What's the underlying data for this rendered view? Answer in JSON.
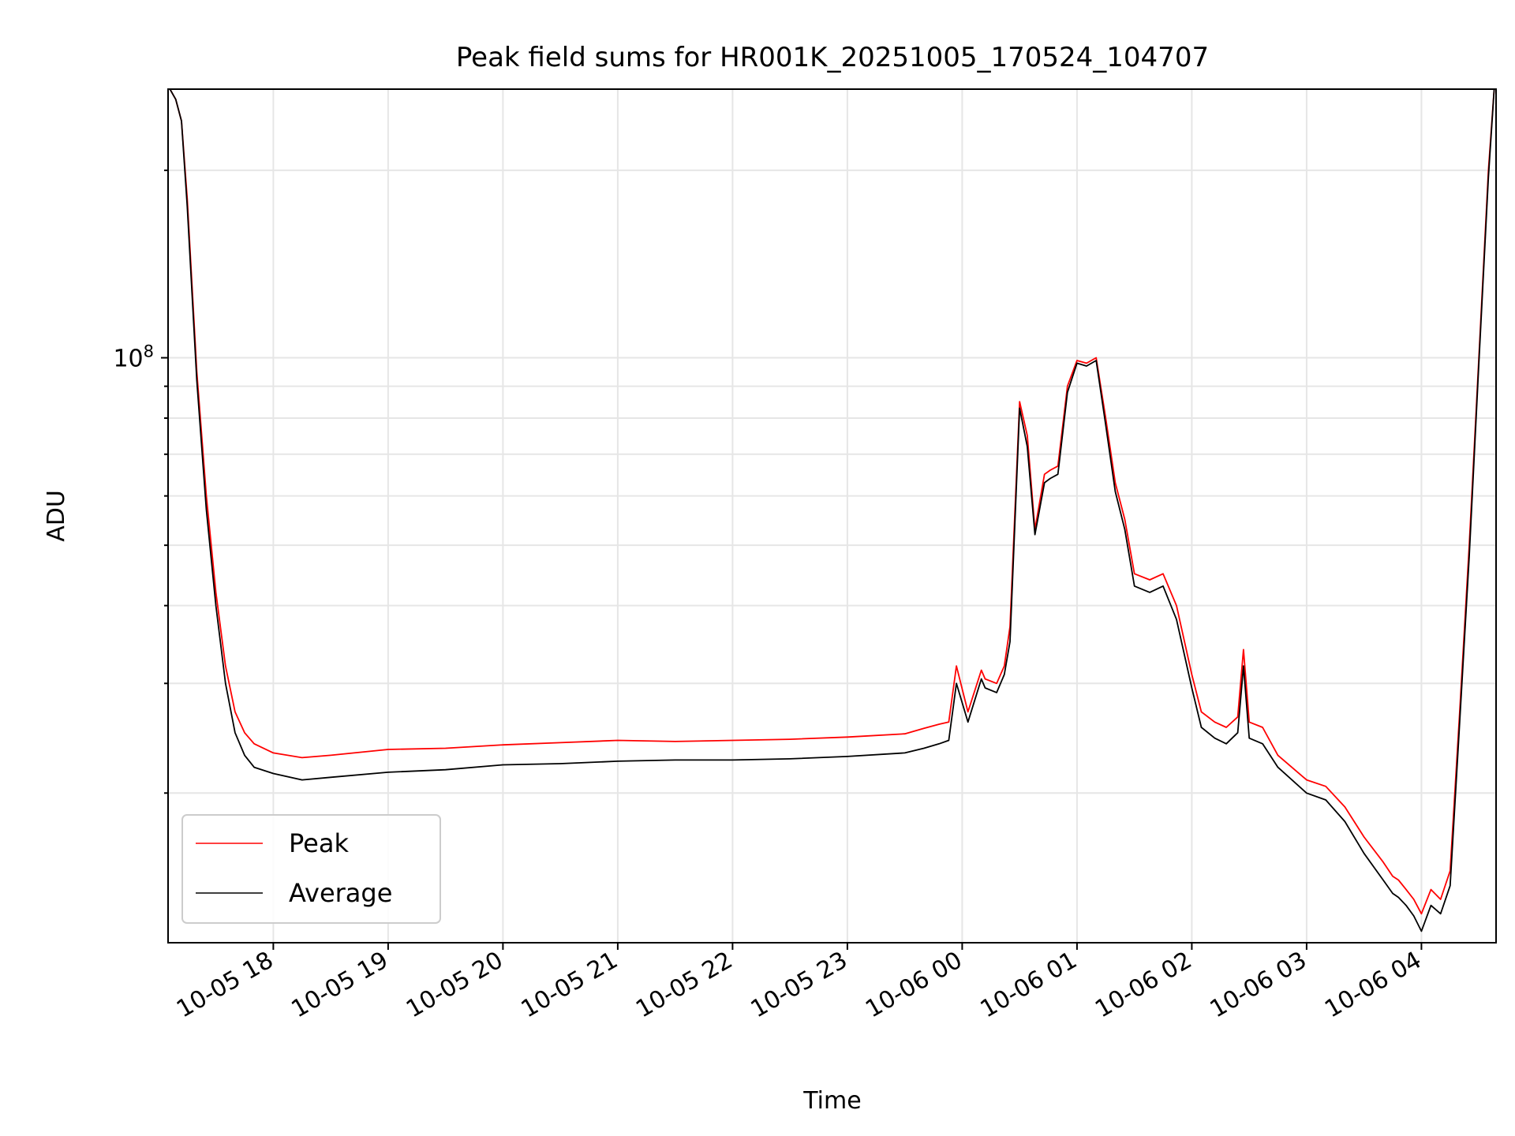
{
  "chart_data": {
    "type": "line",
    "title": "Peak field sums for HR001K_20251005_170524_104707",
    "xlabel": "Time",
    "ylabel": "ADU",
    "y_scale": "log",
    "y_tick_labels": [
      {
        "value": 100000000,
        "base": "10",
        "exp": "8"
      }
    ],
    "x_tick_labels": [
      "10-05 18",
      "10-05 19",
      "10-05 20",
      "10-05 21",
      "10-05 22",
      "10-05 23",
      "10-06 00",
      "10-06 01",
      "10-06 02",
      "10-06 03",
      "10-06 04"
    ],
    "x_ticks": [
      "2025-10-05 18:00",
      "2025-10-05 19:00",
      "2025-10-05 20:00",
      "2025-10-05 21:00",
      "2025-10-05 22:00",
      "2025-10-05 23:00",
      "2025-10-06 00:00",
      "2025-10-06 01:00",
      "2025-10-06 02:00",
      "2025-10-06 03:00",
      "2025-10-06 04:00"
    ],
    "xlim": [
      "2025-10-05 17:05",
      "2025-10-06 04:39"
    ],
    "ylim": [
      11500000,
      270000000
    ],
    "grid": true,
    "legend_position": "lower-left",
    "series": [
      {
        "name": "Peak",
        "color": "#ff0000",
        "x": [
          "2025-10-05 17:06",
          "2025-10-05 17:09",
          "2025-10-05 17:12",
          "2025-10-05 17:15",
          "2025-10-05 17:20",
          "2025-10-05 17:25",
          "2025-10-05 17:30",
          "2025-10-05 17:35",
          "2025-10-05 17:40",
          "2025-10-05 17:45",
          "2025-10-05 17:50",
          "2025-10-05 18:00",
          "2025-10-05 18:15",
          "2025-10-05 18:30",
          "2025-10-05 19:00",
          "2025-10-05 19:30",
          "2025-10-05 20:00",
          "2025-10-05 20:30",
          "2025-10-05 21:00",
          "2025-10-05 21:30",
          "2025-10-05 22:00",
          "2025-10-05 22:30",
          "2025-10-05 23:00",
          "2025-10-05 23:30",
          "2025-10-05 23:40",
          "2025-10-05 23:48",
          "2025-10-05 23:53",
          "2025-10-05 23:57",
          "2025-10-06 00:03",
          "2025-10-06 00:10",
          "2025-10-06 00:12",
          "2025-10-06 00:18",
          "2025-10-06 00:22",
          "2025-10-06 00:25",
          "2025-10-06 00:30",
          "2025-10-06 00:34",
          "2025-10-06 00:38",
          "2025-10-06 00:43",
          "2025-10-06 00:46",
          "2025-10-06 00:50",
          "2025-10-06 00:55",
          "2025-10-06 01:00",
          "2025-10-06 01:05",
          "2025-10-06 01:10",
          "2025-10-06 01:15",
          "2025-10-06 01:20",
          "2025-10-06 01:25",
          "2025-10-06 01:30",
          "2025-10-06 01:38",
          "2025-10-06 01:45",
          "2025-10-06 01:52",
          "2025-10-06 02:00",
          "2025-10-06 02:05",
          "2025-10-06 02:12",
          "2025-10-06 02:18",
          "2025-10-06 02:24",
          "2025-10-06 02:27",
          "2025-10-06 02:30",
          "2025-10-06 02:37",
          "2025-10-06 02:45",
          "2025-10-06 03:00",
          "2025-10-06 03:10",
          "2025-10-06 03:20",
          "2025-10-06 03:30",
          "2025-10-06 03:40",
          "2025-10-06 03:45",
          "2025-10-06 03:48",
          "2025-10-06 03:52",
          "2025-10-06 03:56",
          "2025-10-06 04:00",
          "2025-10-06 04:05",
          "2025-10-06 04:10",
          "2025-10-06 04:15",
          "2025-10-06 04:20",
          "2025-10-06 04:25",
          "2025-10-06 04:30",
          "2025-10-06 04:35",
          "2025-10-06 04:38"
        ],
        "y": [
          270000000,
          260000000,
          240000000,
          180000000,
          95000000,
          60000000,
          42000000,
          32000000,
          27000000,
          25000000,
          24000000,
          23200000,
          22800000,
          23000000,
          23500000,
          23600000,
          23900000,
          24100000,
          24300000,
          24200000,
          24300000,
          24400000,
          24600000,
          24900000,
          25400000,
          25800000,
          26000000,
          32000000,
          27000000,
          31500000,
          30500000,
          30000000,
          32000000,
          37000000,
          85000000,
          75000000,
          53000000,
          65000000,
          66000000,
          67000000,
          90000000,
          99000000,
          98000000,
          100000000,
          80000000,
          63000000,
          55000000,
          45000000,
          44000000,
          45000000,
          40000000,
          31000000,
          27000000,
          26000000,
          25500000,
          26500000,
          34000000,
          26000000,
          25500000,
          23000000,
          21000000,
          20500000,
          19000000,
          17000000,
          15500000,
          14700000,
          14500000,
          14000000,
          13500000,
          12800000,
          14000000,
          13500000,
          15000000,
          27000000,
          50000000,
          100000000,
          200000000,
          270000000
        ]
      },
      {
        "name": "Average",
        "color": "#000000",
        "x": [
          "2025-10-05 17:06",
          "2025-10-05 17:09",
          "2025-10-05 17:12",
          "2025-10-05 17:15",
          "2025-10-05 17:20",
          "2025-10-05 17:25",
          "2025-10-05 17:30",
          "2025-10-05 17:35",
          "2025-10-05 17:40",
          "2025-10-05 17:45",
          "2025-10-05 17:50",
          "2025-10-05 18:00",
          "2025-10-05 18:15",
          "2025-10-05 18:30",
          "2025-10-05 19:00",
          "2025-10-05 19:30",
          "2025-10-05 20:00",
          "2025-10-05 20:30",
          "2025-10-05 21:00",
          "2025-10-05 21:30",
          "2025-10-05 22:00",
          "2025-10-05 22:30",
          "2025-10-05 23:00",
          "2025-10-05 23:30",
          "2025-10-05 23:40",
          "2025-10-05 23:48",
          "2025-10-05 23:53",
          "2025-10-05 23:57",
          "2025-10-06 00:03",
          "2025-10-06 00:10",
          "2025-10-06 00:12",
          "2025-10-06 00:18",
          "2025-10-06 00:22",
          "2025-10-06 00:25",
          "2025-10-06 00:30",
          "2025-10-06 00:34",
          "2025-10-06 00:38",
          "2025-10-06 00:43",
          "2025-10-06 00:46",
          "2025-10-06 00:50",
          "2025-10-06 00:55",
          "2025-10-06 01:00",
          "2025-10-06 01:05",
          "2025-10-06 01:10",
          "2025-10-06 01:15",
          "2025-10-06 01:20",
          "2025-10-06 01:25",
          "2025-10-06 01:30",
          "2025-10-06 01:38",
          "2025-10-06 01:45",
          "2025-10-06 01:52",
          "2025-10-06 02:00",
          "2025-10-06 02:05",
          "2025-10-06 02:12",
          "2025-10-06 02:18",
          "2025-10-06 02:24",
          "2025-10-06 02:27",
          "2025-10-06 02:30",
          "2025-10-06 02:37",
          "2025-10-06 02:45",
          "2025-10-06 03:00",
          "2025-10-06 03:10",
          "2025-10-06 03:20",
          "2025-10-06 03:30",
          "2025-10-06 03:40",
          "2025-10-06 03:45",
          "2025-10-06 03:48",
          "2025-10-06 03:52",
          "2025-10-06 03:56",
          "2025-10-06 04:00",
          "2025-10-06 04:05",
          "2025-10-06 04:10",
          "2025-10-06 04:15",
          "2025-10-06 04:20",
          "2025-10-06 04:25",
          "2025-10-06 04:30",
          "2025-10-06 04:35",
          "2025-10-06 04:38"
        ],
        "y": [
          270000000,
          260000000,
          240000000,
          175000000,
          92000000,
          57000000,
          40000000,
          30000000,
          25000000,
          23000000,
          22000000,
          21500000,
          21000000,
          21200000,
          21600000,
          21800000,
          22200000,
          22300000,
          22500000,
          22600000,
          22600000,
          22700000,
          22900000,
          23200000,
          23600000,
          24000000,
          24300000,
          30000000,
          26000000,
          30500000,
          29500000,
          29000000,
          31000000,
          35000000,
          83000000,
          72000000,
          52000000,
          63000000,
          64000000,
          65000000,
          88000000,
          98000000,
          97000000,
          99000000,
          78000000,
          61000000,
          53000000,
          43000000,
          42000000,
          43000000,
          38000000,
          29500000,
          25500000,
          24500000,
          24000000,
          25000000,
          32000000,
          24500000,
          24000000,
          22000000,
          20000000,
          19500000,
          18000000,
          16000000,
          14500000,
          13800000,
          13600000,
          13200000,
          12700000,
          12000000,
          13200000,
          12800000,
          14200000,
          26000000,
          48000000,
          98000000,
          195000000,
          270000000
        ]
      }
    ]
  }
}
